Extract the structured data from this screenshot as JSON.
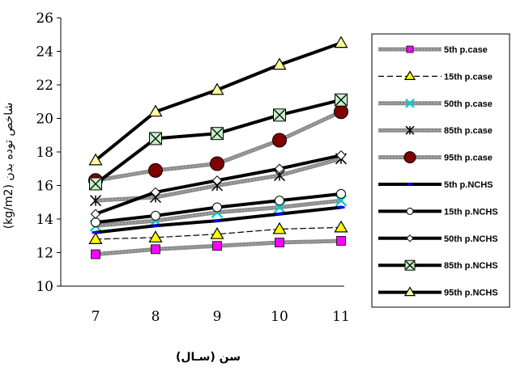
{
  "chart_data": {
    "type": "line",
    "title": "",
    "xlabel": "سن (سـال)",
    "ylabel": "شاخص توده بدن (kg/m2)",
    "x": [
      7,
      8,
      9,
      10,
      11
    ],
    "xticks": [
      "7",
      "8",
      "9",
      "10",
      "11"
    ],
    "ylim": [
      10,
      26
    ],
    "yticks": [
      "10",
      "12",
      "14",
      "16",
      "18",
      "20",
      "22",
      "24",
      "26"
    ],
    "grid": false,
    "legend_position": "right",
    "series": [
      {
        "name": "5th p.case",
        "values": [
          11.9,
          12.2,
          12.4,
          12.6,
          12.7
        ],
        "color": "#808080",
        "marker": "square",
        "marker_color": "#ff00ff",
        "line": "gray"
      },
      {
        "name": "15th p.case",
        "values": [
          12.8,
          12.9,
          13.1,
          13.4,
          13.5
        ],
        "color": "#000000",
        "marker": "triangle",
        "marker_color": "#ffff00",
        "line": "dashed"
      },
      {
        "name": "50th p.case",
        "values": [
          13.6,
          13.9,
          14.4,
          14.7,
          15.1
        ],
        "color": "#808080",
        "marker": "x",
        "marker_color": "#00cccc",
        "line": "gray"
      },
      {
        "name": "85th p.case",
        "values": [
          15.1,
          15.3,
          16.0,
          16.6,
          17.6
        ],
        "color": "#808080",
        "marker": "star",
        "marker_color": "#000000",
        "line": "gray"
      },
      {
        "name": "95th p.case",
        "values": [
          16.3,
          16.9,
          17.3,
          18.7,
          20.4
        ],
        "color": "#808080",
        "marker": "circle",
        "marker_color": "#800000",
        "line": "gray"
      },
      {
        "name": "5th p.NCHS",
        "values": [
          13.2,
          13.6,
          13.9,
          14.3,
          14.7
        ],
        "color": "#000000",
        "marker": "dash",
        "marker_color": "#0000ff",
        "line": "solid"
      },
      {
        "name": "15th p.NCHS",
        "values": [
          13.8,
          14.2,
          14.7,
          15.1,
          15.5
        ],
        "color": "#000000",
        "marker": "circle",
        "marker_color": "#ffffff",
        "line": "solid"
      },
      {
        "name": "50th p.NCHS",
        "values": [
          14.3,
          15.6,
          16.3,
          17.0,
          17.8
        ],
        "color": "#000000",
        "marker": "diamond",
        "marker_color": "#ffffff",
        "line": "solid"
      },
      {
        "name": "85th p.NCHS",
        "values": [
          16.1,
          18.8,
          19.1,
          20.2,
          21.1
        ],
        "color": "#000000",
        "marker": "xbox",
        "marker_color": "#c8f0c8",
        "line": "solid"
      },
      {
        "name": "95th p.NCHS",
        "values": [
          17.5,
          20.4,
          21.7,
          23.2,
          24.5
        ],
        "color": "#000000",
        "marker": "triangle",
        "marker_color": "#ffff99",
        "line": "solid"
      }
    ]
  }
}
